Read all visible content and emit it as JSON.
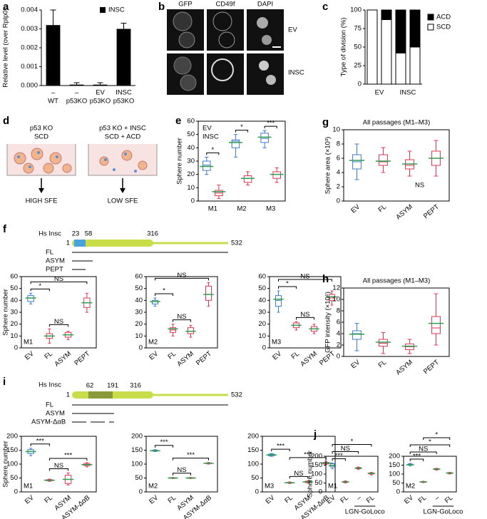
{
  "panel_letters": [
    "a",
    "b",
    "c",
    "d",
    "e",
    "f",
    "g",
    "h",
    "i",
    "j"
  ],
  "panel_b": {
    "columns": [
      "GFP",
      "CD49f",
      "DAPI"
    ],
    "rows": [
      "EV",
      "INSC"
    ]
  },
  "panel_d": {
    "left": [
      "p53 KO",
      "SCD"
    ],
    "right": [
      "p53 KO + INSC",
      "SCD + ACD"
    ],
    "outcomes": [
      "HIGH SFE",
      "LOW SFE"
    ]
  },
  "protein_f": {
    "name": "Hs Insc",
    "start": 1,
    "marks": [
      23,
      58,
      316
    ],
    "end": 532,
    "constructs": [
      "FL",
      "ASYM",
      "PEPT"
    ]
  },
  "protein_i": {
    "name": "Hs Insc",
    "start": 1,
    "marks": [
      62,
      191,
      316
    ],
    "end": 532,
    "constructs": [
      "FL",
      "ASYM",
      "ASYM-ΔαB"
    ]
  },
  "chart_data": [
    {
      "type": "bar",
      "ylabel": "Relative level (over Rplp0)",
      "categories": [
        "–",
        "–",
        "EV",
        "INSC"
      ],
      "groups": [
        "WT",
        "p53KO",
        "p53KO",
        "p53KO"
      ],
      "series": [
        {
          "name": "INSC",
          "color": "#000000",
          "values": [
            0.0032,
            5e-05,
            5e-05,
            0.003
          ],
          "errors": [
            0.0008,
            0.0001,
            0.0001,
            0.0003
          ]
        }
      ],
      "ylim": [
        0,
        0.004
      ],
      "yticks": [
        {
          "value": 0,
          "label": "0.000"
        },
        {
          "value": 0.001,
          "label": "0.001"
        },
        {
          "value": 0.002,
          "label": "0.002"
        },
        {
          "value": 0.003,
          "label": "0.003"
        },
        {
          "value": 0.004,
          "label": "0.004"
        }
      ]
    },
    {
      "type": "stacked_bar",
      "ylabel": "Type of division (%)",
      "categories": [
        "EV",
        null,
        "INSC",
        null
      ],
      "series": [
        {
          "name": "ACD",
          "color": "#000000",
          "values": [
            0,
            13,
            58,
            50
          ]
        },
        {
          "name": "SCD",
          "color": "#ffffff",
          "values": [
            100,
            87,
            42,
            50
          ]
        }
      ],
      "ylim": [
        0,
        100
      ],
      "yticks": [
        0,
        25,
        50,
        75,
        100
      ]
    },
    {
      "type": "box",
      "ylabel": "Sphere number",
      "categories": [
        "M1",
        "M2",
        "M3"
      ],
      "legend": "upper left",
      "mean_color": "#2e9e4f",
      "series": [
        {
          "name": "EV",
          "color": "#3d7cc9",
          "boxes": [
            [
              20,
              23,
              27,
              30,
              33
            ],
            [
              33,
              40,
              45,
              46,
              50
            ],
            [
              40,
              44,
              47,
              51,
              53
            ]
          ],
          "means": [
            26,
            44,
            48
          ]
        },
        {
          "name": "INSC",
          "color": "#e0374f",
          "boxes": [
            [
              2,
              4,
              6,
              8,
              12
            ],
            [
              12,
              14,
              17,
              19,
              22
            ],
            [
              14,
              17,
              20,
              22,
              25
            ]
          ],
          "means": [
            7,
            17,
            20
          ]
        }
      ],
      "ylim": [
        0,
        60
      ],
      "yticks": [
        0,
        10,
        20,
        30,
        40,
        50,
        60
      ],
      "brackets": [
        {
          "text": "*",
          "pair": [
            0,
            0
          ]
        },
        {
          "text": "*",
          "pair": [
            1,
            1
          ]
        },
        {
          "text": "***",
          "pair": [
            2,
            2
          ]
        }
      ]
    },
    {
      "type": "box",
      "ylabel": "Sphere number",
      "label": "M1",
      "categories": [
        "EV",
        "FL",
        "ASYM",
        "PEPT"
      ],
      "mean_color": "#2e9e4f",
      "series": [
        {
          "colors": [
            "#3d7cc9",
            "#e0374f",
            "#e0374f",
            "#e0374f"
          ],
          "boxes": [
            [
              37,
              39,
              42,
              44,
              46
            ],
            [
              4,
              8,
              10,
              12,
              16
            ],
            [
              7,
              9,
              11,
              13,
              14
            ],
            [
              30,
              34,
              38,
              42,
              46
            ]
          ],
          "means": [
            42,
            10,
            11,
            38
          ]
        }
      ],
      "ylim": [
        0,
        60
      ],
      "yticks": [
        0,
        10,
        20,
        30,
        40,
        50,
        60
      ],
      "brackets": [
        {
          "text": "NS",
          "pair": [
            1,
            2
          ]
        },
        {
          "text": "*",
          "pair": [
            0,
            1
          ]
        },
        {
          "text": "NS",
          "pair": [
            0,
            3
          ]
        }
      ]
    },
    {
      "type": "box",
      "label": "M2",
      "categories": [
        "EV",
        "FL",
        "ASYM",
        "PEPT"
      ],
      "mean_color": "#2e9e4f",
      "series": [
        {
          "colors": [
            "#3d7cc9",
            "#e0374f",
            "#e0374f",
            "#e0374f"
          ],
          "boxes": [
            [
              35,
              37,
              39,
              40,
              42
            ],
            [
              10,
              13,
              15,
              17,
              20
            ],
            [
              9,
              12,
              14,
              17,
              19
            ],
            [
              35,
              40,
              45,
              52,
              55
            ]
          ],
          "means": [
            39,
            16,
            14,
            45
          ]
        }
      ],
      "ylim": [
        0,
        60
      ],
      "yticks": [
        0,
        10,
        20,
        30,
        40,
        50,
        60
      ],
      "brackets": [
        {
          "text": "NS",
          "pair": [
            1,
            2
          ]
        },
        {
          "text": "*",
          "pair": [
            0,
            1
          ]
        },
        {
          "text": "NS",
          "pair": [
            0,
            3
          ]
        }
      ]
    },
    {
      "type": "box",
      "label": "M3",
      "categories": [
        "EV",
        "FL",
        "ASYM",
        "PEPT"
      ],
      "mean_color": "#2e9e4f",
      "series": [
        {
          "colors": [
            "#3d7cc9",
            "#e0374f",
            "#e0374f",
            "#e0374f"
          ],
          "boxes": [
            [
              30,
              35,
              40,
              44,
              48
            ],
            [
              15,
              17,
              19,
              21,
              22
            ],
            [
              12,
              14,
              16,
              18,
              20
            ],
            [
              36,
              40,
              42,
              45,
              48
            ]
          ],
          "means": [
            41,
            19,
            16,
            43
          ]
        }
      ],
      "ylim": [
        0,
        60
      ],
      "yticks": [
        0,
        10,
        20,
        30,
        40,
        50,
        60
      ],
      "brackets": [
        {
          "text": "NS",
          "pair": [
            1,
            2
          ]
        },
        {
          "text": "*",
          "pair": [
            0,
            1
          ]
        },
        {
          "text": "NS",
          "pair": [
            0,
            3
          ]
        }
      ]
    },
    {
      "type": "box",
      "title": "All passages (M1–M3)",
      "ylabel": "Sphere area (×10³)",
      "note": "NS",
      "categories": [
        "EV",
        "FL",
        "ASYM",
        "PEPT"
      ],
      "mean_color": "#2e9e4f",
      "series": [
        {
          "colors": [
            "#3d7cc9",
            "#e0374f",
            "#e0374f",
            "#e0374f"
          ],
          "boxes": [
            [
              3,
              4.5,
              5.5,
              6.5,
              8
            ],
            [
              4,
              5,
              5.5,
              6.5,
              7.5
            ],
            [
              3.5,
              4.5,
              5,
              5.8,
              7
            ],
            [
              3.5,
              5,
              6,
              7,
              8.5
            ]
          ],
          "means": [
            5.7,
            5.6,
            5.2,
            6
          ]
        }
      ],
      "ylim": [
        0,
        10
      ],
      "yticks": [
        0,
        2,
        4,
        6,
        8,
        10
      ]
    },
    {
      "type": "box",
      "title": "All passages (M1–M3)",
      "ylabel": "GFP intensity (×10⁶)",
      "categories": [
        "EV",
        "FL",
        "ASYM",
        "PEPT"
      ],
      "mean_color": "#2e9e4f",
      "series": [
        {
          "colors": [
            "#3d7cc9",
            "#e0374f",
            "#e0374f",
            "#e0374f"
          ],
          "boxes": [
            [
              1,
              3,
              4,
              4.5,
              5.8
            ],
            [
              0.5,
              1.8,
              2.3,
              3,
              4.2
            ],
            [
              0.5,
              1.2,
              1.7,
              2.2,
              3
            ],
            [
              2,
              4,
              5,
              7,
              11
            ]
          ],
          "means": [
            3.9,
            2.5,
            1.8,
            5.8
          ]
        }
      ],
      "ylim": [
        0,
        12
      ],
      "yticks": [
        0,
        2,
        4,
        6,
        8,
        10,
        12
      ]
    },
    {
      "type": "box",
      "ylabel": "Sphere number",
      "label": "M1",
      "categories": [
        "EV",
        "FL",
        "ASYM",
        "ASYM-ΔαB"
      ],
      "mean_color": "#2e9e4f",
      "series": [
        {
          "colors": [
            "#3d7cc9",
            "#e0374f",
            "#e0374f",
            "#e0374f"
          ],
          "boxes": [
            [
              130,
              138,
              145,
              152,
              157
            ],
            [
              38,
              40,
              42,
              44,
              46
            ],
            [
              25,
              30,
              45,
              60,
              68
            ],
            [
              90,
              95,
              98,
              102,
              105
            ]
          ],
          "means": [
            145,
            42,
            45,
            98
          ]
        }
      ],
      "ylim": [
        0,
        200
      ],
      "yticks": [
        0,
        50,
        100,
        150,
        200
      ],
      "brackets": [
        {
          "text": "NS",
          "pair": [
            1,
            2
          ]
        },
        {
          "text": "***",
          "pair": [
            0,
            1
          ]
        },
        {
          "text": "***",
          "pair": [
            1,
            3
          ]
        }
      ]
    },
    {
      "type": "box",
      "label": "M2",
      "categories": [
        "EV",
        "FL",
        "ASYM",
        "ASYM-ΔαB"
      ],
      "mean_color": "#2e9e4f",
      "series": [
        {
          "colors": [
            "#3d7cc9",
            "#e0374f",
            "#e0374f",
            "#e0374f"
          ],
          "boxes": [
            [
              145,
              147,
              148,
              150,
              152
            ],
            [
              48,
              49,
              50,
              51,
              52
            ],
            [
              48,
              49,
              50,
              51,
              52
            ],
            [
              100,
              102,
              103,
              104,
              106
            ]
          ],
          "means": [
            148,
            50,
            50,
            103
          ]
        }
      ],
      "ylim": [
        0,
        200
      ],
      "yticks": [
        0,
        50,
        100,
        150,
        200
      ],
      "brackets": [
        {
          "text": "NS",
          "pair": [
            1,
            2
          ]
        },
        {
          "text": "***",
          "pair": [
            0,
            1
          ]
        },
        {
          "text": "***",
          "pair": [
            1,
            3
          ]
        }
      ]
    },
    {
      "type": "box",
      "label": "M3",
      "categories": [
        "EV",
        "FL",
        "ASYM",
        "ASYM-ΔαB"
      ],
      "mean_color": "#2e9e4f",
      "series": [
        {
          "colors": [
            "#3d7cc9",
            "#e0374f",
            "#e0374f",
            "#e0374f"
          ],
          "boxes": [
            [
              128,
              130,
              133,
              136,
              138
            ],
            [
              30,
              32,
              33,
              34,
              36
            ],
            [
              32,
              34,
              36,
              38,
              40
            ],
            [
              98,
              101,
              104,
              106,
              108
            ]
          ],
          "means": [
            133,
            33,
            36,
            104
          ]
        }
      ],
      "ylim": [
        0,
        200
      ],
      "yticks": [
        0,
        50,
        100,
        150,
        200
      ],
      "brackets": [
        {
          "text": "NS",
          "pair": [
            1,
            2
          ]
        },
        {
          "text": "***",
          "pair": [
            0,
            1
          ]
        },
        {
          "text": "***",
          "pair": [
            1,
            3
          ]
        }
      ]
    },
    {
      "type": "box",
      "ylabel": "Sphere number",
      "label": "M1",
      "categories": [
        "EV",
        "FL",
        "–",
        "FL"
      ],
      "group_label": {
        "text": "LGN-GoLoco",
        "span": [
          2,
          3
        ]
      },
      "mean_color": "#2e9e4f",
      "series": [
        {
          "colors": [
            "#3d7cc9",
            "#e0374f",
            "#e0374f",
            "#e0374f"
          ],
          "boxes": [
            [
              130,
              140,
              150,
              158,
              162
            ],
            [
              50,
              53,
              56,
              59,
              62
            ],
            [
              125,
              130,
              133,
              137,
              140
            ],
            [
              95,
              100,
              103,
              107,
              110
            ]
          ],
          "means": [
            148,
            56,
            133,
            104
          ]
        }
      ],
      "ylim": [
        0,
        200
      ],
      "yticks": [
        0,
        50,
        100,
        150,
        200
      ],
      "brackets": [
        {
          "text": "***",
          "pair": [
            0,
            1
          ]
        },
        {
          "text": "NS",
          "pair": [
            0,
            2
          ]
        },
        {
          "text": "*",
          "pair": [
            0,
            3
          ]
        }
      ]
    },
    {
      "type": "box",
      "label": "M2",
      "categories": [
        "EV",
        "FL",
        "–",
        "FL"
      ],
      "group_label": {
        "text": "LGN-GoLoco",
        "span": [
          2,
          3
        ]
      },
      "mean_color": "#2e9e4f",
      "series": [
        {
          "colors": [
            "#3d7cc9",
            "#e0374f",
            "#e0374f",
            "#e0374f"
          ],
          "boxes": [
            [
              145,
              150,
              153,
              157,
              160
            ],
            [
              52,
              54,
              56,
              58,
              60
            ],
            [
              122,
              125,
              128,
              131,
              133
            ],
            [
              100,
              103,
              106,
              108,
              110
            ]
          ],
          "means": [
            152,
            56,
            128,
            106
          ]
        }
      ],
      "ylim": [
        0,
        200
      ],
      "yticks": [
        0,
        50,
        100,
        150,
        200
      ],
      "brackets": [
        {
          "text": "***",
          "pair": [
            0,
            1
          ]
        },
        {
          "text": "NS",
          "pair": [
            0,
            2
          ]
        },
        {
          "text": "*",
          "pair": [
            0,
            3
          ]
        },
        {
          "text": "*",
          "pair": [
            1,
            3
          ]
        }
      ]
    }
  ]
}
